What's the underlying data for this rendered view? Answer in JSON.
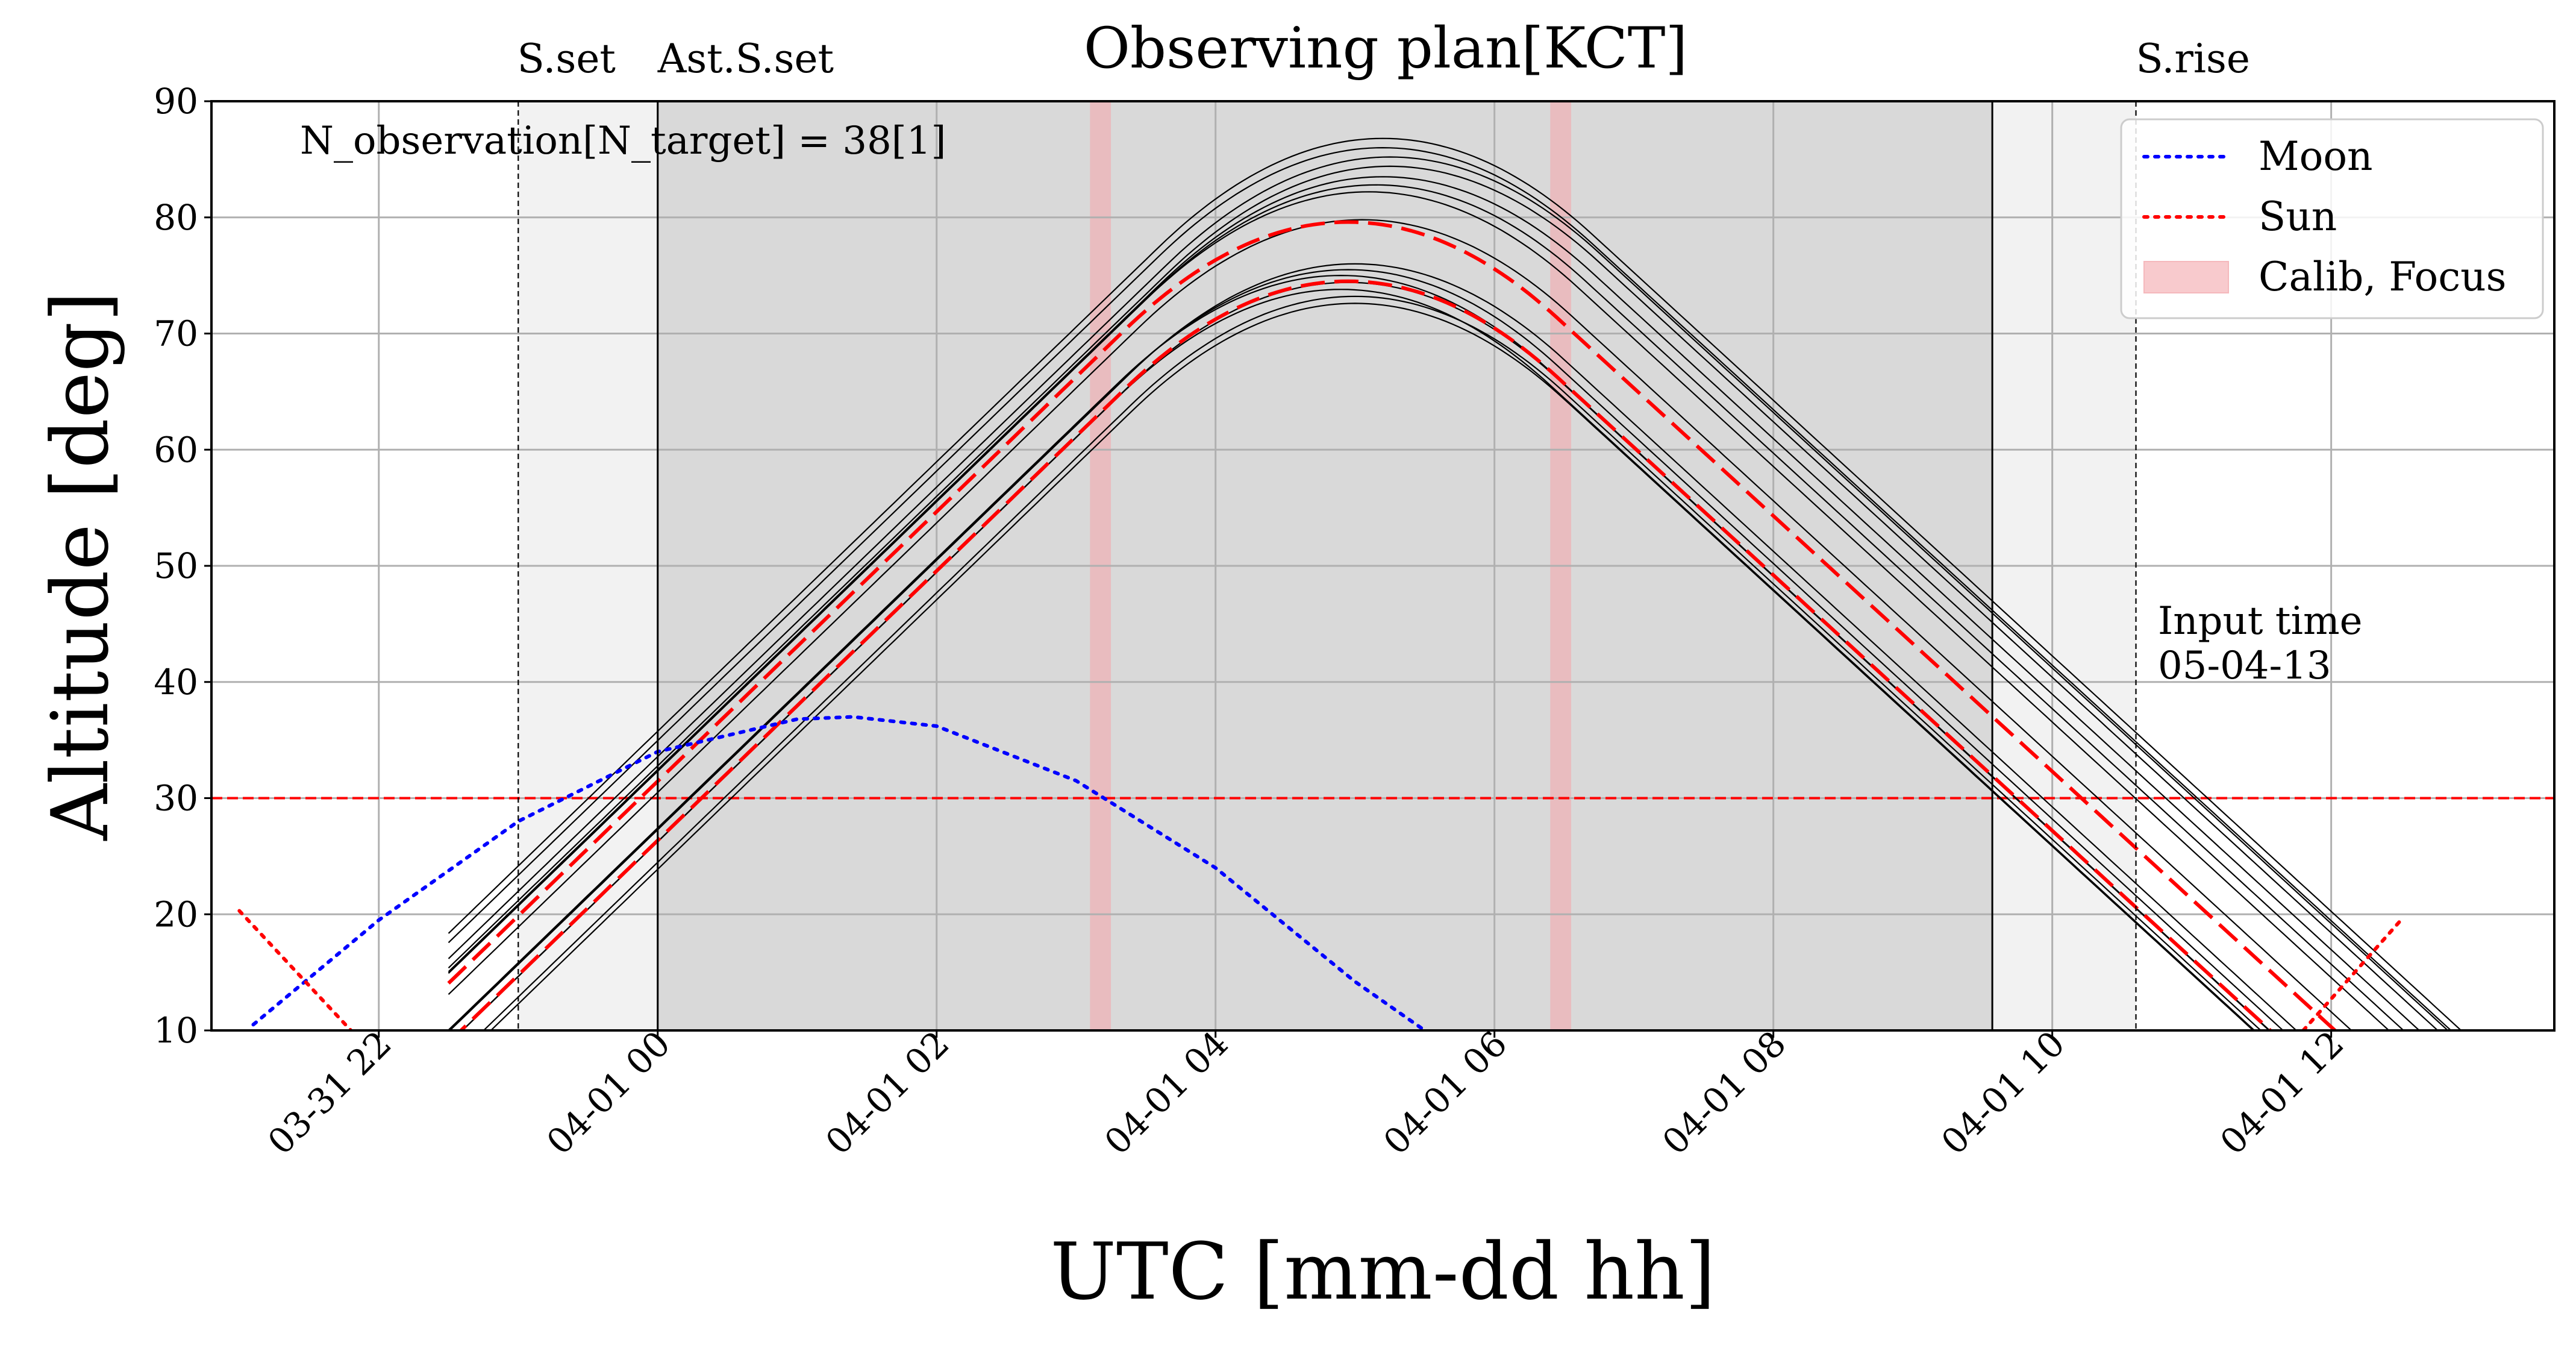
{
  "chart_data": {
    "type": "line",
    "title": "Observing plan[KCT]",
    "xlabel": "UTC [mm-dd hh]",
    "ylabel": "Altitude [deg]",
    "xlim_hours": [
      -3.2,
      13.6
    ],
    "ylim": [
      10,
      90
    ],
    "yticks": [
      10,
      20,
      30,
      40,
      50,
      60,
      70,
      80,
      90
    ],
    "xticks": [
      {
        "hour": -2,
        "label": "03-31 22"
      },
      {
        "hour": 0,
        "label": "04-01 00"
      },
      {
        "hour": 2,
        "label": "04-01 02"
      },
      {
        "hour": 4,
        "label": "04-01 04"
      },
      {
        "hour": 6,
        "label": "04-01 06"
      },
      {
        "hour": 8,
        "label": "04-01 08"
      },
      {
        "hour": 10,
        "label": "04-01 10"
      },
      {
        "hour": 12,
        "label": "04-01 12"
      }
    ],
    "grid": true,
    "altitude_limit": 30,
    "night_span": [
      -1.0,
      10.6
    ],
    "astronomical_night_span": [
      0.0,
      9.57
    ],
    "events": [
      {
        "hour": -1.0,
        "label": "S.set",
        "style": "dashed"
      },
      {
        "hour": 0.0,
        "label": "Ast.S.set",
        "style": "solid"
      },
      {
        "hour": 9.57,
        "label": "",
        "style": "solid"
      },
      {
        "hour": 10.6,
        "label": "S.rise",
        "style": "dashed"
      }
    ],
    "calib_focus_spans": [
      [
        3.1,
        3.25
      ],
      [
        6.4,
        6.55
      ]
    ],
    "annotation_count": "N_observation[N_target] = 38[1]",
    "input_time_label": "Input time\n 05-04-13",
    "legend_position": "upper right",
    "moon": {
      "name": "Moon",
      "color": "#0000ff",
      "x": [
        -2.9,
        -2,
        -1,
        0,
        1,
        1.4,
        2,
        3,
        4,
        5,
        5.5
      ],
      "y": [
        10.5,
        19.5,
        28,
        34,
        36.8,
        37,
        36.2,
        31.5,
        24,
        14.2,
        10
      ]
    },
    "sun": {
      "name": "Sun",
      "color": "#ff0000",
      "x_evening": [
        -3.0,
        -2.2
      ],
      "y_evening": [
        20.3,
        10
      ],
      "x_morning": [
        11.8,
        12.5
      ],
      "y_morning": [
        10,
        19.5
      ]
    },
    "calib_legend": {
      "name": "Calib, Focus",
      "color": "#f4a8ad"
    },
    "target_tracks": {
      "color": "#000000",
      "rise_slope_deg_per_hour": 11.6,
      "set_slope_deg_per_hour": 11.0,
      "peaks": [
        {
          "hour": 5.2,
          "alt": 86.8
        },
        {
          "hour": 5.2,
          "alt": 86.0
        },
        {
          "hour": 5.25,
          "alt": 85.2
        },
        {
          "hour": 5.25,
          "alt": 84.4
        },
        {
          "hour": 5.2,
          "alt": 83.5
        },
        {
          "hour": 5.15,
          "alt": 82.8
        },
        {
          "hour": 5.1,
          "alt": 82.2
        },
        {
          "hour": 5.05,
          "alt": 79.8
        },
        {
          "hour": 5.0,
          "alt": 76.0
        },
        {
          "hour": 4.95,
          "alt": 75.5
        },
        {
          "hour": 4.9,
          "alt": 75.0
        },
        {
          "hour": 4.95,
          "alt": 74.4
        },
        {
          "hour": 4.9,
          "alt": 73.8
        },
        {
          "hour": 5.0,
          "alt": 73.2
        },
        {
          "hour": 5.0,
          "alt": 72.6
        }
      ],
      "highlight_peaks": [
        {
          "hour": 4.95,
          "alt": 79.6
        },
        {
          "hour": 4.95,
          "alt": 74.5
        }
      ],
      "highlight_color": "#ff0000",
      "highlight_span": [
        0.7,
        9.5
      ]
    }
  }
}
